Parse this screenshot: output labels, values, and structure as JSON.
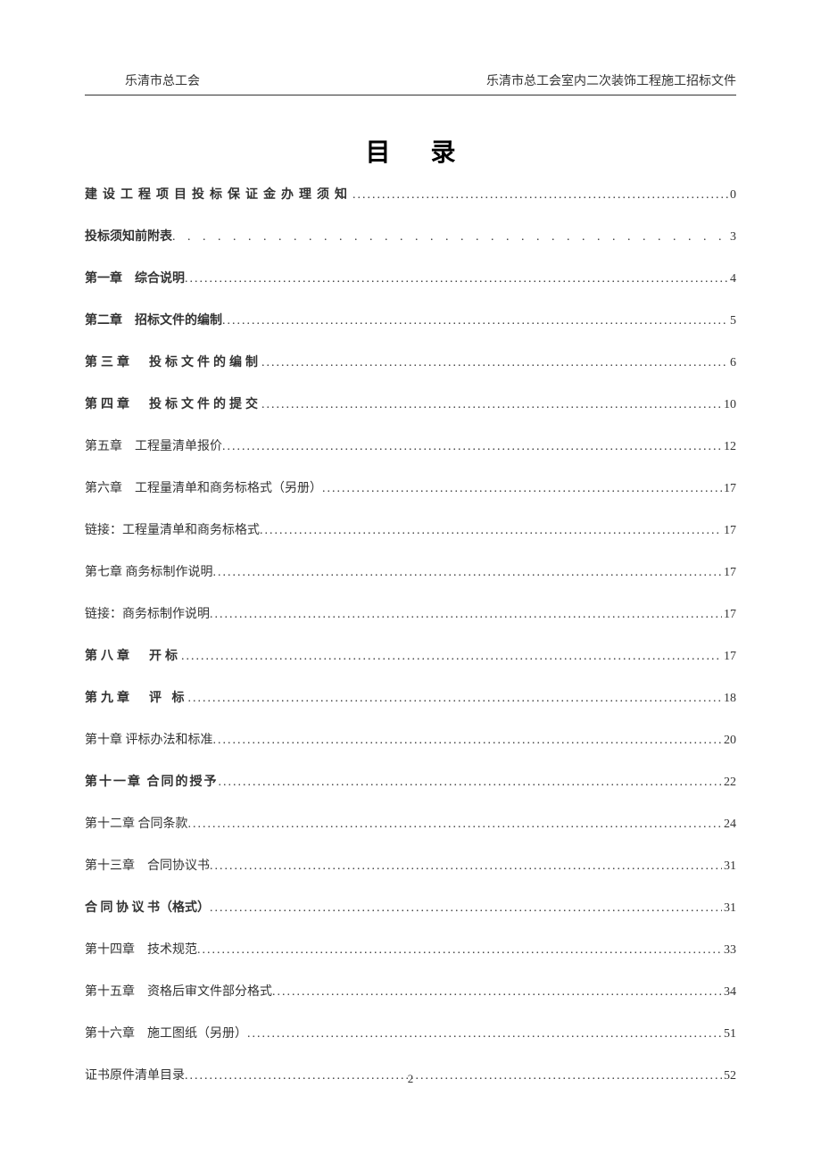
{
  "header": {
    "left": "乐清市总工会",
    "right": "乐清市总工会室内二次装饰工程施工招标文件"
  },
  "title": "目录",
  "toc": [
    {
      "label": "建设工程项目投标保证金办理须知",
      "page": "0",
      "bold": true,
      "spacing": "spaced-6",
      "dot_style": "toc-dots"
    },
    {
      "label": "投标须知前附表 ",
      "page": " 3",
      "bold": true,
      "spacing": "",
      "dot_style": "toc-dots-spaced"
    },
    {
      "label": "第一章　综合说明",
      "page": "4",
      "bold": true,
      "spacing": "",
      "dot_style": "toc-dots"
    },
    {
      "label": "第二章　招标文件的编制",
      "page": "5",
      "bold": true,
      "spacing": "",
      "dot_style": "toc-dots"
    },
    {
      "label": "第三章　投标文件的编制",
      "page": "6",
      "bold": true,
      "spacing": "spaced-4",
      "dot_style": "toc-dots"
    },
    {
      "label": "第四章　投标文件的提交",
      "page": "10",
      "bold": true,
      "spacing": "spaced-4",
      "dot_style": "toc-dots"
    },
    {
      "label": "第五章　工程量清单报价",
      "page": "12",
      "bold": false,
      "spacing": "",
      "dot_style": "toc-dots"
    },
    {
      "label": "第六章　工程量清单和商务标格式（另册）",
      "page": "17",
      "bold": false,
      "spacing": "",
      "dot_style": "toc-dots"
    },
    {
      "label": "链接：工程量清单和商务标格式",
      "page": "17",
      "bold": false,
      "spacing": "",
      "dot_style": "toc-dots"
    },
    {
      "label": "第七章 商务标制作说明",
      "page": "17",
      "bold": false,
      "spacing": "",
      "dot_style": "toc-dots"
    },
    {
      "label": "链接：商务标制作说明",
      "page": "17",
      "bold": false,
      "spacing": "",
      "dot_style": "toc-dots"
    },
    {
      "label": "第八章　开标",
      "page": "17",
      "bold": true,
      "spacing": "spaced-4",
      "dot_style": "toc-dots"
    },
    {
      "label": "第九章　评 标",
      "page": "18",
      "bold": true,
      "spacing": "spaced-4",
      "dot_style": "toc-dots"
    },
    {
      "label": "第十章 评标办法和标准",
      "page": "20",
      "bold": false,
      "spacing": "",
      "dot_style": "toc-dots"
    },
    {
      "label": "第十一章 合同的授予",
      "page": "22",
      "bold": true,
      "spacing": "spaced-2",
      "dot_style": "toc-dots"
    },
    {
      "label": "第十二章 合同条款",
      "page": "24",
      "bold": false,
      "spacing": "",
      "dot_style": "toc-dots"
    },
    {
      "label": "第十三章　合同协议书",
      "page": "31",
      "bold": false,
      "spacing": "",
      "dot_style": "toc-dots"
    },
    {
      "label": "合 同 协 议 书（格式）",
      "page": "31",
      "bold": true,
      "spacing": "",
      "dot_style": "toc-dots"
    },
    {
      "label": "第十四章　技术规范",
      "page": "33",
      "bold": false,
      "spacing": "",
      "dot_style": "toc-dots"
    },
    {
      "label": "第十五章　资格后审文件部分格式",
      "page": "34",
      "bold": false,
      "spacing": "",
      "dot_style": "toc-dots"
    },
    {
      "label": "第十六章　施工图纸（另册）",
      "page": "51",
      "bold": false,
      "spacing": "",
      "dot_style": "toc-dots"
    },
    {
      "label": "证书原件清单目录",
      "page": "52",
      "bold": false,
      "spacing": "",
      "dot_style": "toc-dots"
    }
  ],
  "page_number": "2",
  "colors": {
    "text": "#333333",
    "background": "#ffffff",
    "border": "#333333"
  },
  "typography": {
    "body_fontsize": 14,
    "title_fontsize": 28,
    "pagenum_fontsize": 13
  }
}
